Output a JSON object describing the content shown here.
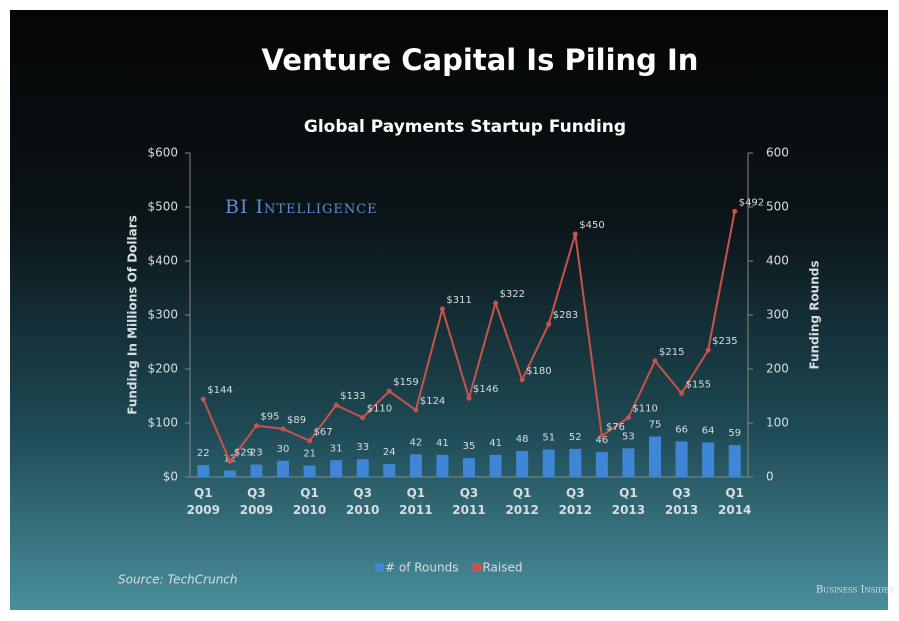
{
  "chart_data": {
    "type": "bar-line",
    "title": "Venture Capital Is Piling In",
    "subtitle": "Global Payments Startup Funding",
    "ylabel": "Funding In Millions Of Dollars",
    "y2label": "Funding Rounds",
    "watermark": "BI Intelligence",
    "source": "Source: TechCrunch",
    "brand": "Business Insider",
    "categories": [
      "Q1 2009",
      null,
      "Q3 2009",
      null,
      "Q1 2010",
      null,
      "Q3 2010",
      null,
      "Q1 2011",
      null,
      "Q3 2011",
      null,
      "Q1 2012",
      null,
      "Q3 2012",
      null,
      "Q1 2013",
      null,
      "Q3 2013",
      null,
      "Q1 2014"
    ],
    "series": [
      {
        "name": "# of Rounds",
        "color": "#3f86d6",
        "axis": "y2",
        "values": [
          22,
          12,
          23,
          30,
          21,
          31,
          33,
          24,
          42,
          41,
          35,
          41,
          48,
          51,
          52,
          46,
          53,
          75,
          66,
          64,
          59
        ]
      },
      {
        "name": "Raised",
        "color": "#c9534c",
        "axis": "y",
        "values": [
          144,
          29,
          95,
          89,
          67,
          133,
          110,
          159,
          124,
          311,
          146,
          322,
          180,
          283,
          450,
          76,
          110,
          215,
          155,
          235,
          492
        ],
        "value_labels": [
          "$144",
          "$29",
          "$95",
          "$89",
          "$67",
          "$133",
          "$110",
          "$159",
          "$124",
          "$311",
          "$146",
          "$322",
          "$180",
          "$283",
          "$450",
          "$76",
          "$110",
          "$215",
          "$155",
          "$235",
          "$492"
        ]
      }
    ],
    "ylim": [
      0,
      600
    ],
    "yticks": [
      {
        "value": 0,
        "label": "$0"
      },
      {
        "value": 100,
        "label": "$100"
      },
      {
        "value": 200,
        "label": "$200"
      },
      {
        "value": 300,
        "label": "$300"
      },
      {
        "value": 400,
        "label": "$400"
      },
      {
        "value": 500,
        "label": "$500"
      },
      {
        "value": 600,
        "label": "$600"
      }
    ],
    "y2lim": [
      0,
      600
    ],
    "y2ticks": [
      0,
      100,
      200,
      300,
      400,
      500,
      600
    ],
    "legend": "bottom"
  }
}
